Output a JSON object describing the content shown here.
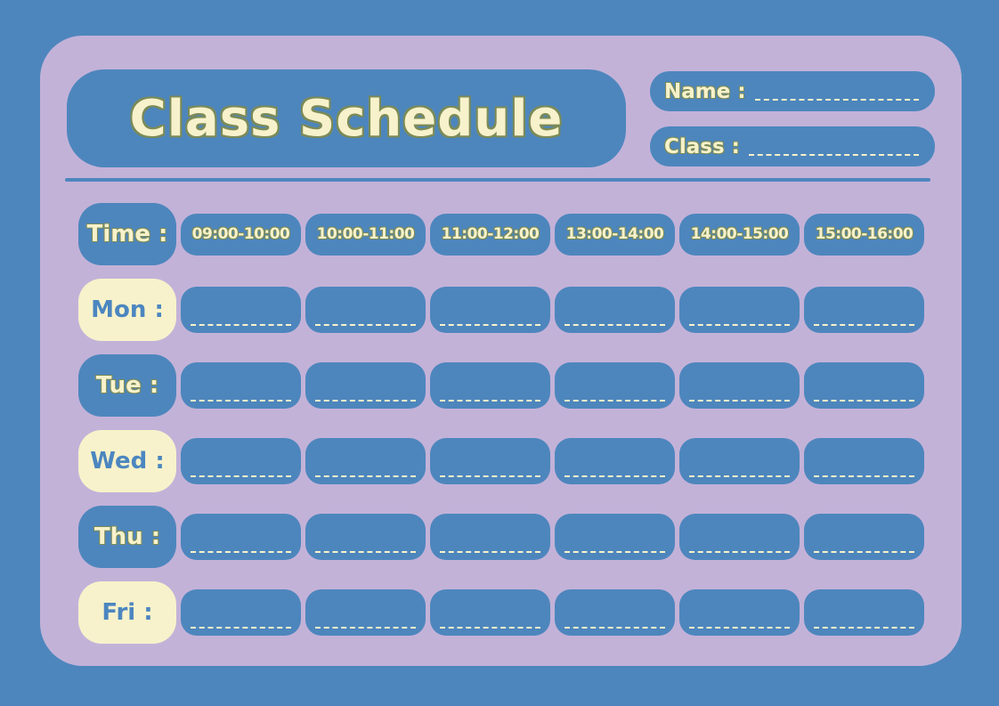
{
  "colors": {
    "background": "#4d86bd",
    "card": "#c3b2d8",
    "box_blue": "#4d86bd",
    "cream": "#f7f2cb",
    "text_blue": "#4c86c0",
    "outline": "#7b8a57"
  },
  "header": {
    "title": "Class Schedule",
    "name_label": "Name :",
    "class_label": "Class :"
  },
  "schedule": {
    "time_label": "Time :",
    "time_slots": [
      "09:00-10:00",
      "10:00-11:00",
      "11:00-12:00",
      "13:00-14:00",
      "14:00-15:00",
      "15:00-16:00"
    ],
    "days": [
      {
        "label": "Mon :",
        "variant": "cream"
      },
      {
        "label": "Tue :",
        "variant": "blue"
      },
      {
        "label": "Wed :",
        "variant": "cream"
      },
      {
        "label": "Thu :",
        "variant": "blue"
      },
      {
        "label": "Fri :",
        "variant": "cream"
      }
    ],
    "cells_per_day": 6
  }
}
